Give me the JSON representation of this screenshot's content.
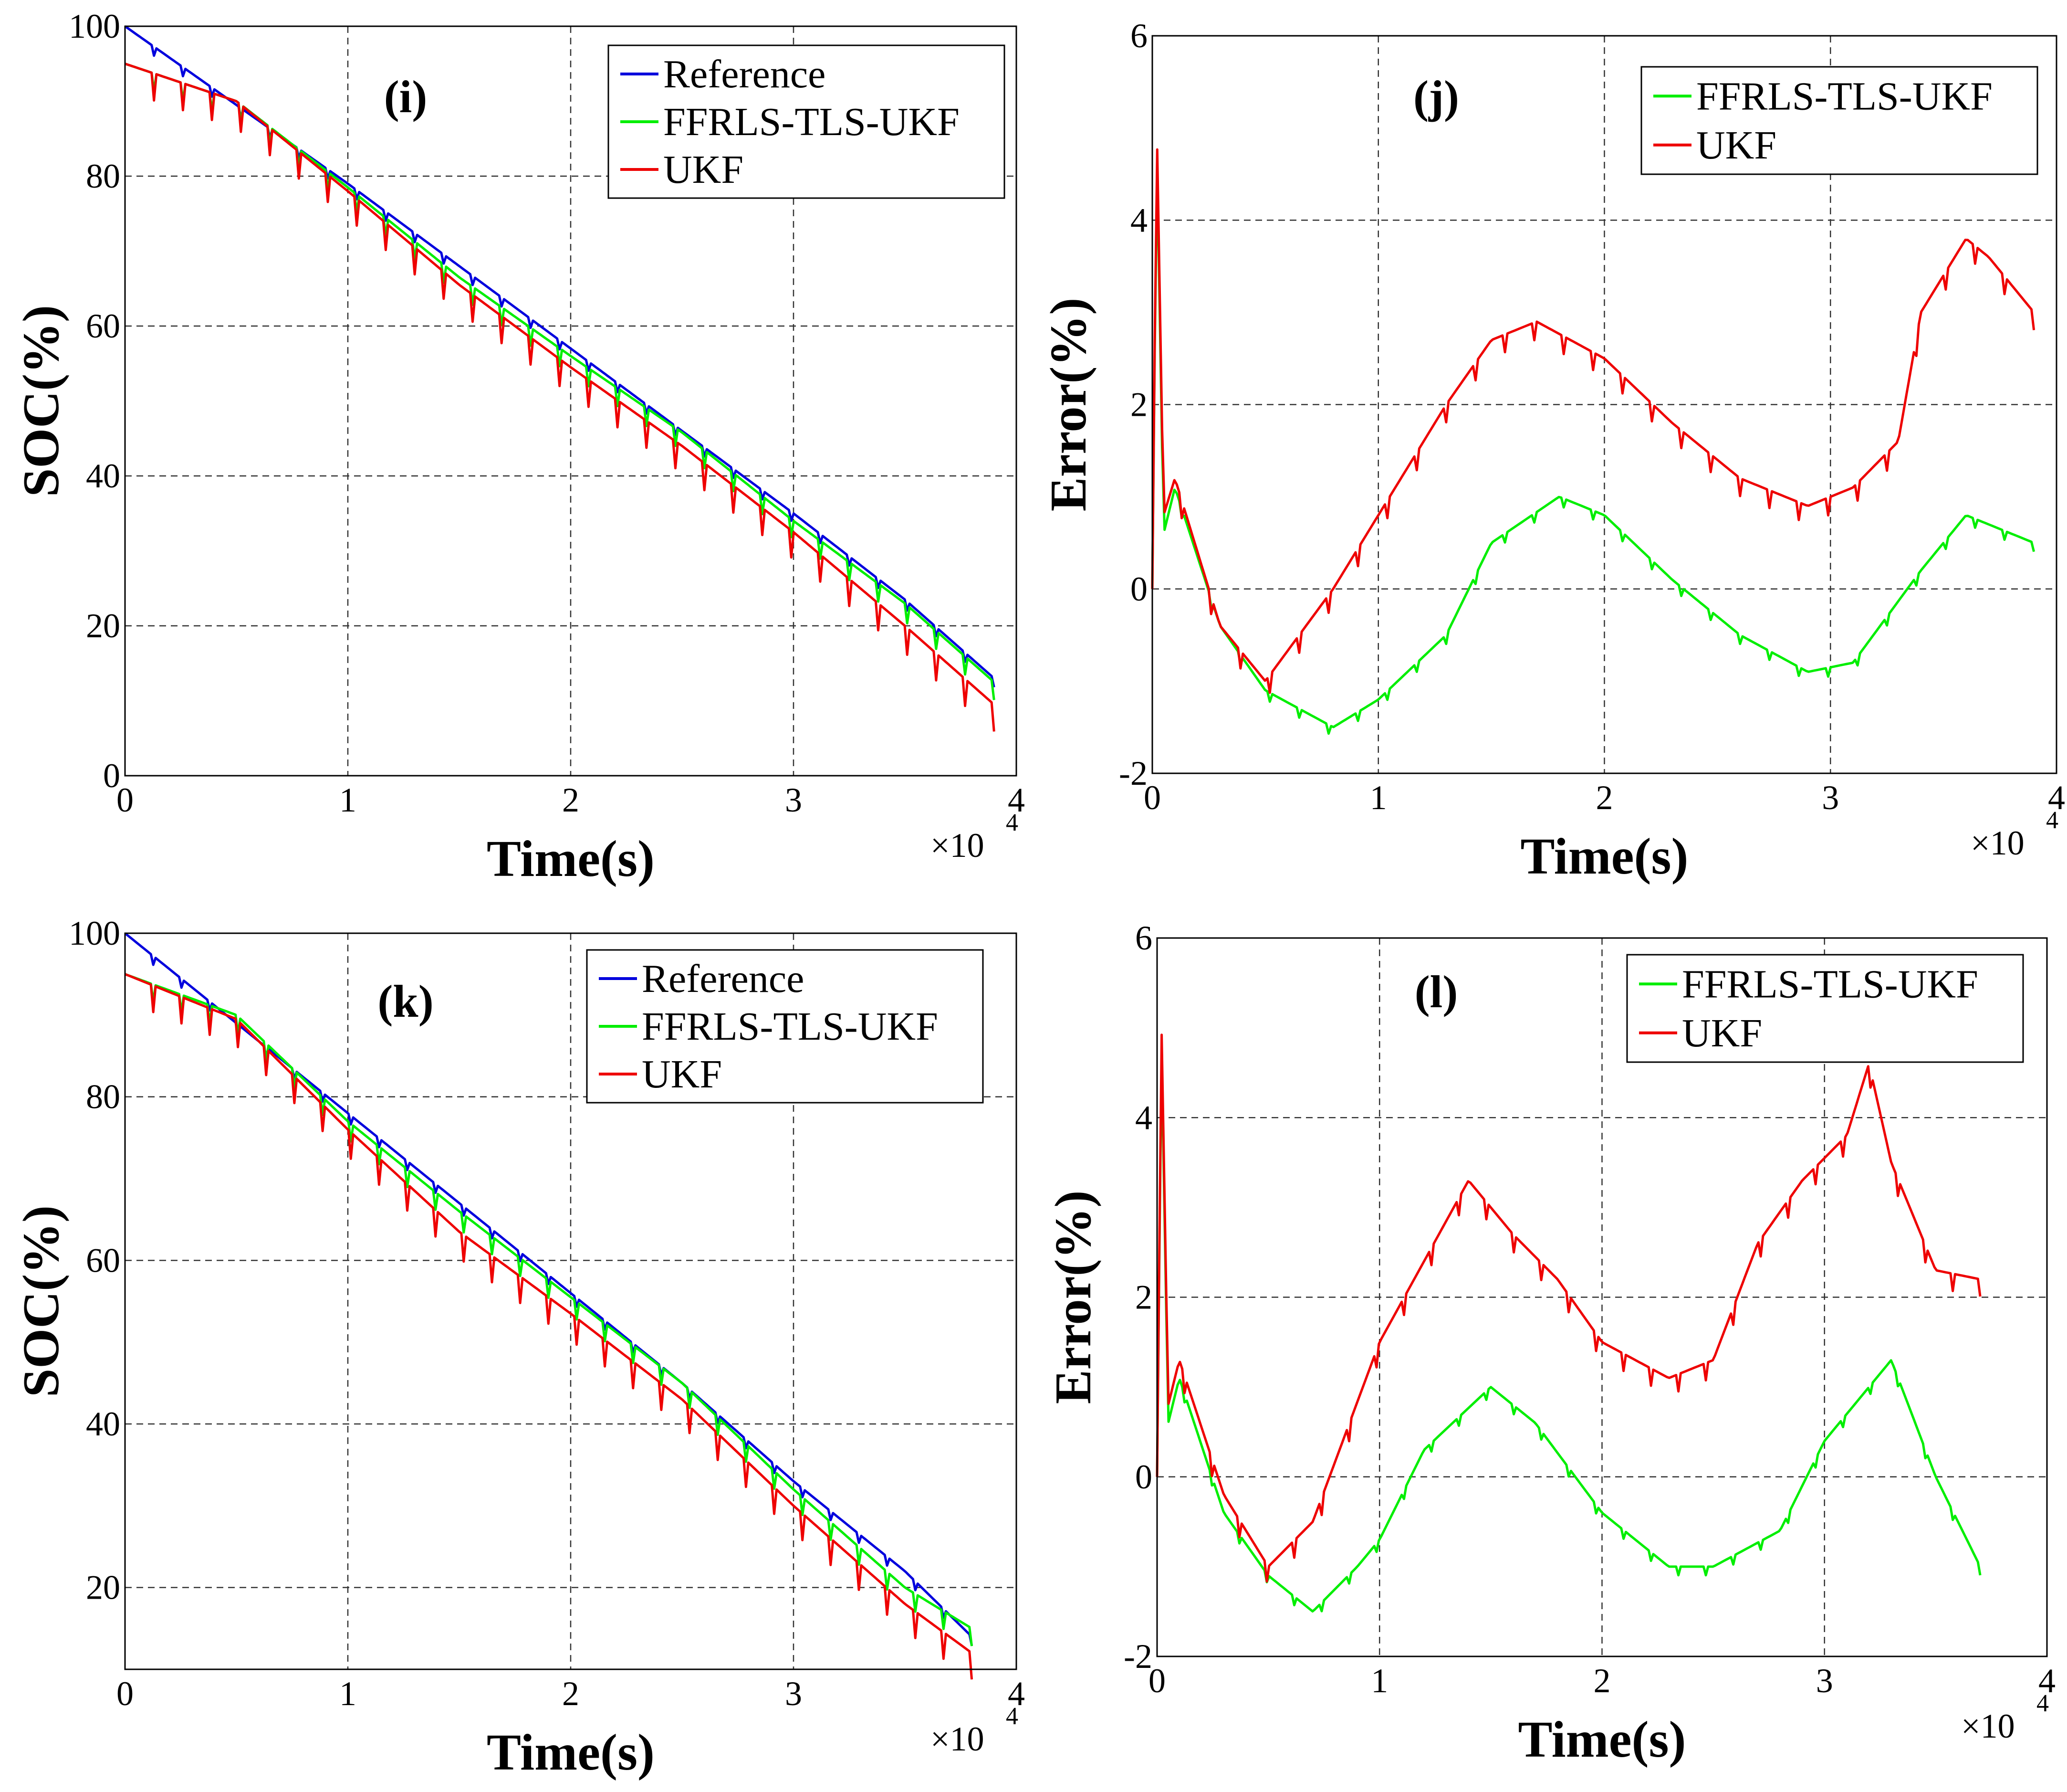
{
  "chart_data": [
    {
      "panel": "(i)",
      "type": "line",
      "xlabel": "Time(s)",
      "ylabel": "SOC(%)",
      "x_multiplier": "×10",
      "x_multiplier_exp": "4",
      "xlim": [
        0,
        4
      ],
      "ylim": [
        0,
        100
      ],
      "xticks": [
        0,
        1,
        2,
        3,
        4
      ],
      "yticks": [
        0,
        20,
        40,
        60,
        80,
        100
      ],
      "series": [
        {
          "name": "Reference",
          "color": "#0000dd",
          "x": [
            0,
            0.5,
            1,
            1.5,
            2,
            2.5,
            3,
            3.5,
            3.9
          ],
          "y": [
            100,
            89.5,
            79,
            68,
            57,
            46,
            35,
            23.5,
            13
          ]
        },
        {
          "name": "FFRLS-TLS-UKF",
          "color": "#00ee00",
          "x": [
            0,
            0.5,
            1,
            1.5,
            2,
            2.5,
            3,
            3.5,
            3.9
          ],
          "y": [
            95,
            90,
            78.5,
            66.5,
            56,
            45.8,
            34,
            23,
            12.5
          ]
        },
        {
          "name": "UKF",
          "color": "#ee0000",
          "x": [
            0,
            0.5,
            1,
            1.5,
            2,
            2.5,
            3,
            3.5,
            3.9
          ],
          "y": [
            95,
            90,
            78,
            65.5,
            54.5,
            44,
            32.5,
            20,
            9.5
          ]
        }
      ]
    },
    {
      "panel": "(j)",
      "type": "line",
      "xlabel": "Time(s)",
      "ylabel": "Error(%)",
      "x_multiplier": "×10",
      "x_multiplier_exp": "4",
      "xlim": [
        0,
        4
      ],
      "ylim": [
        -2,
        6
      ],
      "xticks": [
        0,
        1,
        2,
        3,
        4
      ],
      "yticks": [
        -2,
        0,
        2,
        4,
        6
      ],
      "series": [
        {
          "name": "FFRLS-TLS-UKF",
          "color": "#00ee00",
          "x": [
            0,
            0.02,
            0.05,
            0.1,
            0.3,
            0.5,
            0.8,
            1.0,
            1.3,
            1.5,
            1.8,
            2.0,
            2.3,
            2.6,
            2.9,
            3.1,
            3.4,
            3.6,
            3.9
          ],
          "y": [
            0,
            4.8,
            0.6,
            1.1,
            -0.4,
            -1.1,
            -1.5,
            -1.2,
            -0.5,
            0.5,
            1.0,
            0.8,
            0.1,
            -0.5,
            -0.9,
            -0.8,
            0.2,
            0.8,
            0.5
          ]
        },
        {
          "name": "UKF",
          "color": "#ee0000",
          "x": [
            0,
            0.02,
            0.05,
            0.1,
            0.3,
            0.5,
            0.8,
            1.0,
            1.3,
            1.5,
            1.7,
            2.0,
            2.3,
            2.6,
            2.9,
            3.1,
            3.3,
            3.4,
            3.6,
            3.7,
            3.9
          ],
          "y": [
            0,
            5.0,
            0.8,
            1.2,
            -0.4,
            -1.0,
            0.0,
            0.8,
            2.0,
            2.7,
            2.9,
            2.5,
            1.8,
            1.2,
            0.9,
            1.1,
            1.6,
            3.0,
            3.8,
            3.6,
            3.0
          ]
        }
      ]
    },
    {
      "panel": "(k)",
      "type": "line",
      "xlabel": "Time(s)",
      "ylabel": "SOC(%)",
      "x_multiplier": "×10",
      "x_multiplier_exp": "4",
      "xlim": [
        0,
        4
      ],
      "ylim": [
        10,
        100
      ],
      "xticks": [
        0,
        1,
        2,
        3,
        4
      ],
      "yticks": [
        20,
        40,
        60,
        80,
        100
      ],
      "series": [
        {
          "name": "Reference",
          "color": "#0000dd",
          "x": [
            0,
            0.5,
            1,
            1.5,
            2,
            2.5,
            3,
            3.5,
            3.8
          ],
          "y": [
            100,
            89,
            78,
            67,
            56,
            45,
            33,
            22,
            14
          ]
        },
        {
          "name": "FFRLS-TLS-UKF",
          "color": "#00ee00",
          "x": [
            0,
            0.5,
            1,
            1.5,
            2,
            2.5,
            3,
            3.5,
            3.8
          ],
          "y": [
            95,
            90,
            77,
            66,
            55.5,
            45,
            32,
            20,
            15
          ]
        },
        {
          "name": "UKF",
          "color": "#ee0000",
          "x": [
            0,
            0.5,
            1,
            1.5,
            2,
            2.5,
            3,
            3.5,
            3.8
          ],
          "y": [
            95,
            89.5,
            76,
            63.5,
            53.5,
            43,
            30,
            18,
            12
          ]
        }
      ]
    },
    {
      "panel": "(l)",
      "type": "line",
      "xlabel": "Time(s)",
      "ylabel": "Error(%)",
      "x_multiplier": "×10",
      "x_multiplier_exp": "4",
      "xlim": [
        0,
        4
      ],
      "ylim": [
        -2,
        6
      ],
      "xticks": [
        0,
        1,
        2,
        3,
        4
      ],
      "yticks": [
        -2,
        0,
        2,
        4,
        6
      ],
      "series": [
        {
          "name": "FFRLS-TLS-UKF",
          "color": "#00ee00",
          "x": [
            0,
            0.02,
            0.05,
            0.1,
            0.3,
            0.5,
            0.7,
            0.9,
            1.0,
            1.2,
            1.5,
            1.7,
            2.0,
            2.3,
            2.5,
            2.8,
            3.0,
            3.3,
            3.5,
            3.7
          ],
          "y": [
            0,
            4.8,
            0.6,
            1.1,
            -0.4,
            -1.1,
            -1.5,
            -1.0,
            -0.7,
            0.3,
            1.0,
            0.6,
            -0.4,
            -1.0,
            -1.0,
            -0.6,
            0.4,
            1.3,
            0.0,
            -1.0
          ]
        },
        {
          "name": "UKF",
          "color": "#ee0000",
          "x": [
            0,
            0.02,
            0.05,
            0.1,
            0.3,
            0.5,
            0.7,
            1.0,
            1.2,
            1.4,
            1.6,
            1.8,
            2.0,
            2.3,
            2.5,
            2.7,
            2.9,
            3.1,
            3.2,
            3.3,
            3.5,
            3.7
          ],
          "y": [
            0,
            5.0,
            0.8,
            1.3,
            -0.2,
            -1.0,
            -0.5,
            1.5,
            2.4,
            3.3,
            2.7,
            2.2,
            1.5,
            1.1,
            1.3,
            2.6,
            3.3,
            3.8,
            4.6,
            3.5,
            2.3,
            2.2
          ]
        }
      ]
    }
  ]
}
